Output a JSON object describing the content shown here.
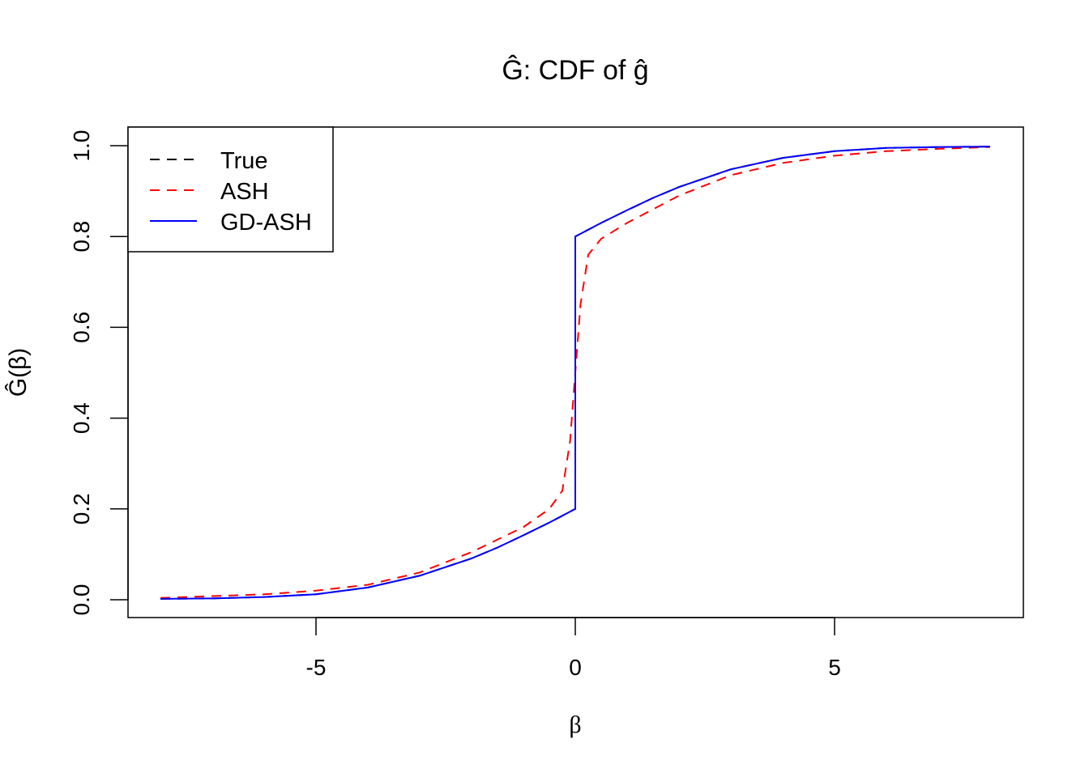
{
  "chart_data": {
    "type": "line",
    "title": "Ĝ: CDF of ĝ",
    "xlabel": "β",
    "ylabel": "Ĝ(β)",
    "xlim": [
      -8.5,
      8.8
    ],
    "ylim": [
      -0.04,
      1.04
    ],
    "x_ticks": [
      -5,
      0,
      5
    ],
    "x_tick_labels": [
      "-5",
      "0",
      "5"
    ],
    "y_ticks": [
      0,
      0.2,
      0.4,
      0.6,
      0.8,
      1.0
    ],
    "y_tick_labels": [
      "0.0",
      "0.2",
      "0.4",
      "0.6",
      "0.8",
      "1.0"
    ],
    "grid": false,
    "legend_position": "top-left",
    "series": [
      {
        "name": "True",
        "color": "#000000",
        "style": "dashed",
        "x": [
          -8,
          -7,
          -6,
          -5,
          -4,
          -3,
          -2,
          -1.5,
          -1,
          -0.5,
          0,
          0,
          0.5,
          1,
          1.5,
          2,
          3,
          4,
          5,
          6,
          7,
          8
        ],
        "y": [
          0.002,
          0.003,
          0.006,
          0.012,
          0.027,
          0.053,
          0.091,
          0.115,
          0.142,
          0.17,
          0.2,
          0.8,
          0.83,
          0.858,
          0.885,
          0.909,
          0.948,
          0.973,
          0.988,
          0.995,
          0.997,
          0.998
        ]
      },
      {
        "name": "ASH",
        "color": "#ff0000",
        "style": "dashed",
        "x": [
          -8,
          -7,
          -6,
          -5,
          -4,
          -3,
          -2,
          -1,
          -0.5,
          -0.25,
          -0.1,
          0,
          0.1,
          0.25,
          0.5,
          1,
          2,
          3,
          4,
          5,
          6,
          7,
          8
        ],
        "y": [
          0.004,
          0.008,
          0.012,
          0.02,
          0.033,
          0.06,
          0.105,
          0.16,
          0.2,
          0.24,
          0.35,
          0.5,
          0.65,
          0.76,
          0.795,
          0.83,
          0.89,
          0.935,
          0.962,
          0.978,
          0.988,
          0.993,
          0.997
        ]
      },
      {
        "name": "GD-ASH",
        "color": "#0000ff",
        "style": "solid",
        "x": [
          -8,
          -7,
          -6,
          -5,
          -4,
          -3,
          -2,
          -1.5,
          -1,
          -0.5,
          0,
          0,
          0.5,
          1,
          1.5,
          2,
          3,
          4,
          5,
          6,
          7,
          8
        ],
        "y": [
          0.002,
          0.003,
          0.006,
          0.012,
          0.027,
          0.053,
          0.091,
          0.115,
          0.142,
          0.17,
          0.2,
          0.8,
          0.83,
          0.858,
          0.885,
          0.909,
          0.948,
          0.973,
          0.988,
          0.995,
          0.997,
          0.998
        ]
      }
    ]
  }
}
